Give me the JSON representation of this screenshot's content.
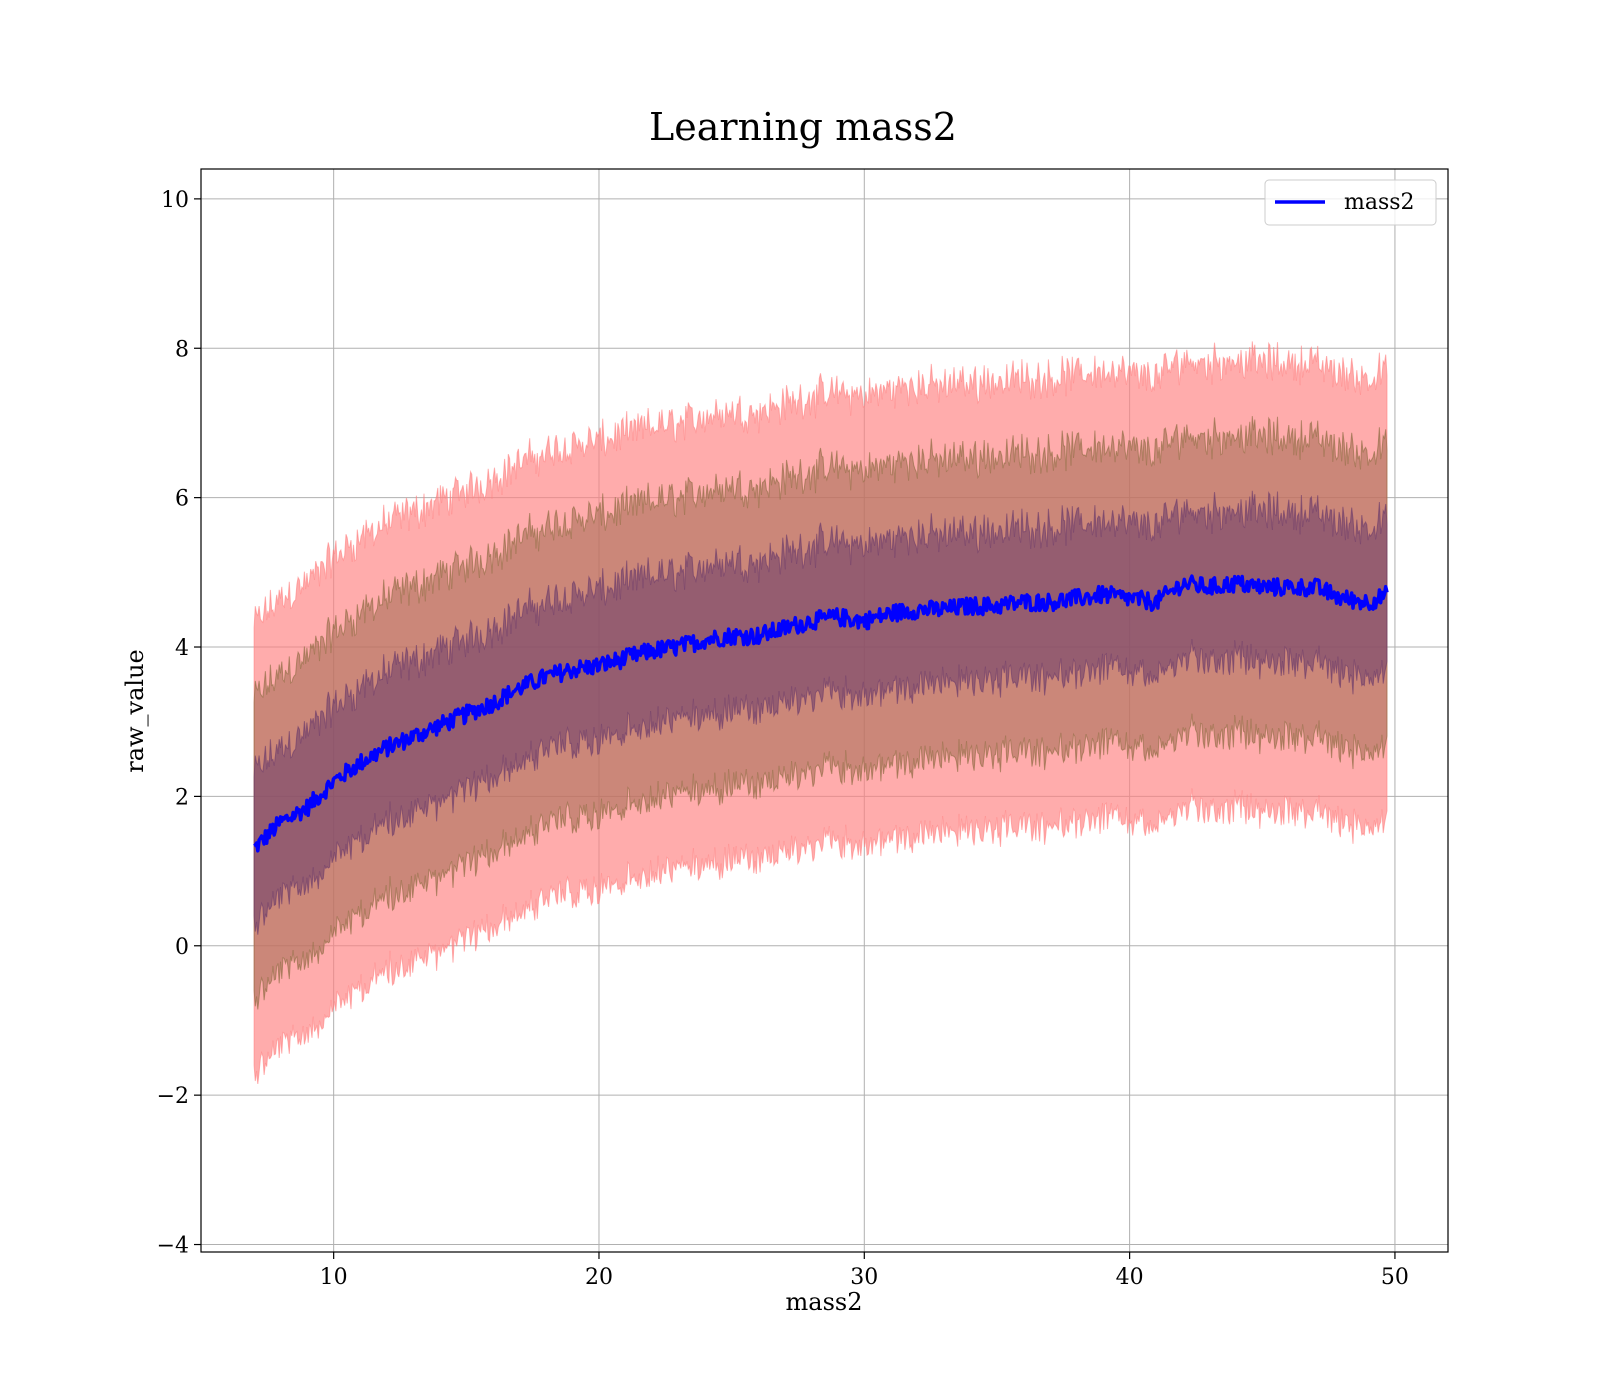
{
  "chart_data": {
    "type": "line",
    "title": "Learning mass2",
    "xlabel": "mass2",
    "ylabel": "raw_value",
    "xlim": [
      5,
      52
    ],
    "ylim": [
      -4.1,
      10.4
    ],
    "xticks": [
      10,
      20,
      30,
      40,
      50
    ],
    "yticks": [
      -4,
      -2,
      0,
      2,
      4,
      6,
      8,
      10
    ],
    "xtick_labels": [
      "10",
      "20",
      "30",
      "40",
      "50"
    ],
    "ytick_labels": [
      "−4",
      "−2",
      "0",
      "2",
      "4",
      "6",
      "8",
      "10"
    ],
    "grid": true,
    "legend": {
      "location": "upper right",
      "entries": [
        "mass2"
      ]
    },
    "colors": {
      "line": "#0000ff",
      "band3": "#ff8080",
      "band2": "#a06a50",
      "band1": "#6a3a6a"
    },
    "series": [
      {
        "name": "mass2",
        "x": [
          7,
          8,
          9,
          10,
          11,
          12,
          13,
          14,
          15,
          16,
          17,
          18,
          19,
          20,
          21,
          22,
          23,
          24,
          25,
          26,
          27,
          28,
          29,
          30,
          31,
          32,
          33,
          34,
          35,
          36,
          37,
          38,
          39,
          40,
          41,
          42,
          43,
          44,
          45,
          46,
          47,
          48,
          49,
          49.7
        ],
        "y": [
          1.3,
          1.65,
          1.85,
          2.2,
          2.45,
          2.65,
          2.8,
          2.95,
          3.1,
          3.25,
          3.45,
          3.6,
          3.7,
          3.75,
          3.85,
          3.95,
          4.0,
          4.1,
          4.15,
          4.15,
          4.25,
          4.35,
          4.4,
          4.35,
          4.45,
          4.5,
          4.5,
          4.55,
          4.55,
          4.6,
          4.6,
          4.65,
          4.7,
          4.65,
          4.6,
          4.85,
          4.8,
          4.85,
          4.8,
          4.8,
          4.8,
          4.65,
          4.6,
          4.7
        ]
      }
    ],
    "bands": [
      {
        "level": "3-sigma",
        "half_width": 3.0
      },
      {
        "level": "2-sigma",
        "half_width": 2.0
      },
      {
        "level": "1-sigma",
        "half_width": 1.0
      }
    ],
    "noise_amplitude": {
      "line": 0.12,
      "band": 0.2
    }
  }
}
